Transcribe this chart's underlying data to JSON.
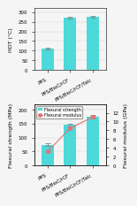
{
  "top_chart": {
    "categories": [
      "PPS",
      "PPS/BioC/rCF",
      "PPS/BioC/rCF/Talc"
    ],
    "hdt_values": [
      110,
      270,
      275
    ],
    "hdt_errors": [
      5,
      4,
      4
    ],
    "bar_color": "#4DD9D9",
    "ylabel": "HDT (°C)",
    "ylim": [
      0,
      320
    ],
    "yticks": [
      0,
      50,
      100,
      150,
      200,
      250,
      300
    ]
  },
  "bottom_chart": {
    "categories": [
      "PPS",
      "PPS/BioC/rCF",
      "PPS/BioC/rCF/Talc"
    ],
    "flexural_values": [
      75,
      145,
      175
    ],
    "flexural_errors": [
      4,
      5,
      5
    ],
    "modulus_values": [
      3.2,
      8.5,
      11.0
    ],
    "modulus_errors": [
      0.2,
      0.3,
      0.4
    ],
    "bar_color": "#4DD9D9",
    "line_color": "#E87070",
    "ylabel_left": "Flexural strength (MPa)",
    "ylabel_right": "Flexural modulus (GPa)",
    "ylim_left": [
      0,
      220
    ],
    "ylim_right": [
      0,
      14
    ],
    "yticks_left": [
      0,
      50,
      100,
      150,
      200
    ],
    "yticks_right": [
      0,
      2,
      4,
      6,
      8,
      10,
      12
    ],
    "legend_bar": "Flexural strength",
    "legend_line": "Flexural modulus"
  },
  "background_color": "#f5f5f5",
  "tick_label_fontsize": 4,
  "axis_label_fontsize": 4.5,
  "legend_fontsize": 3.5
}
